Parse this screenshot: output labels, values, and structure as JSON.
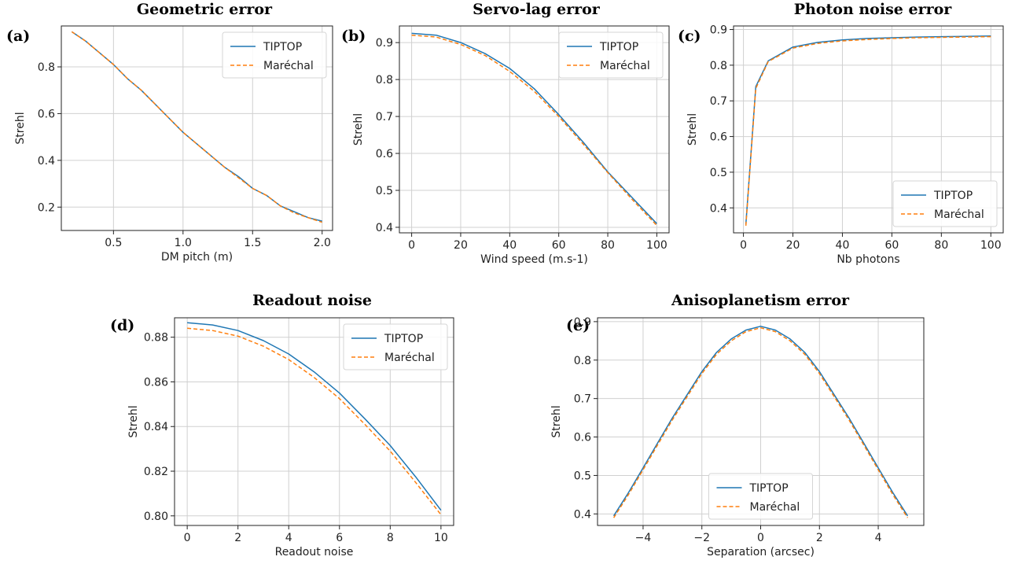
{
  "colors": {
    "tiptop": "#1f77b4",
    "marechal": "#ff7f0e"
  },
  "chart_data": [
    {
      "id": "a",
      "panel_label": "(a)",
      "type": "line",
      "title": "Geometric error",
      "xlabel": "DM pitch (m)",
      "ylabel": "Strehl",
      "xlim": [
        0.125,
        2.075
      ],
      "ylim": [
        0.1,
        0.975
      ],
      "xticks": [
        0.5,
        1.0,
        1.5,
        2.0
      ],
      "xtick_labels": [
        "0.5",
        "1.0",
        "1.5",
        "2.0"
      ],
      "yticks": [
        0.2,
        0.4,
        0.6,
        0.8
      ],
      "ytick_labels": [
        "0.2",
        "0.4",
        "0.6",
        "0.8"
      ],
      "grid": true,
      "legend_position": "top-right",
      "x": [
        0.2,
        0.3,
        0.4,
        0.5,
        0.6,
        0.7,
        0.8,
        0.9,
        1.0,
        1.1,
        1.2,
        1.3,
        1.4,
        1.5,
        1.6,
        1.7,
        1.8,
        1.9,
        2.0
      ],
      "series": [
        {
          "name": "TIPTOP",
          "style": "solid",
          "values": [
            0.95,
            0.91,
            0.86,
            0.81,
            0.75,
            0.7,
            0.64,
            0.58,
            0.52,
            0.47,
            0.42,
            0.37,
            0.33,
            0.28,
            0.25,
            0.205,
            0.18,
            0.155,
            0.14
          ]
        },
        {
          "name": "Maréchal",
          "style": "dashed",
          "values": [
            0.95,
            0.91,
            0.86,
            0.81,
            0.75,
            0.7,
            0.64,
            0.58,
            0.52,
            0.47,
            0.42,
            0.37,
            0.325,
            0.28,
            0.25,
            0.205,
            0.175,
            0.155,
            0.135
          ]
        }
      ]
    },
    {
      "id": "b",
      "panel_label": "(b)",
      "type": "line",
      "title": "Servo-lag error",
      "xlabel": "Wind speed (m.s-1)",
      "ylabel": "Strehl",
      "xlim": [
        -5,
        105
      ],
      "ylim": [
        0.385,
        0.945
      ],
      "xticks": [
        0,
        20,
        40,
        60,
        80,
        100
      ],
      "xtick_labels": [
        "0",
        "20",
        "40",
        "60",
        "80",
        "100"
      ],
      "yticks": [
        0.4,
        0.5,
        0.6,
        0.7,
        0.8,
        0.9
      ],
      "ytick_labels": [
        "0.4",
        "0.5",
        "0.6",
        "0.7",
        "0.8",
        "0.9"
      ],
      "grid": true,
      "legend_position": "top-right",
      "x": [
        0,
        10,
        20,
        30,
        40,
        50,
        60,
        70,
        80,
        90,
        100
      ],
      "series": [
        {
          "name": "TIPTOP",
          "style": "solid",
          "values": [
            0.925,
            0.92,
            0.9,
            0.87,
            0.83,
            0.775,
            0.705,
            0.63,
            0.55,
            0.48,
            0.41
          ]
        },
        {
          "name": "Maréchal",
          "style": "dashed",
          "values": [
            0.92,
            0.915,
            0.895,
            0.865,
            0.822,
            0.768,
            0.7,
            0.625,
            0.548,
            0.475,
            0.405
          ]
        }
      ]
    },
    {
      "id": "c",
      "panel_label": "(c)",
      "type": "line",
      "title": "Photon noise error",
      "xlabel": "Nb photons",
      "ylabel": "Strehl",
      "xlim": [
        -4,
        105
      ],
      "ylim": [
        0.33,
        0.91
      ],
      "xticks": [
        0,
        20,
        40,
        60,
        80,
        100
      ],
      "xtick_labels": [
        "0",
        "20",
        "40",
        "60",
        "80",
        "100"
      ],
      "yticks": [
        0.4,
        0.5,
        0.6,
        0.7,
        0.8,
        0.9
      ],
      "ytick_labels": [
        "0.4",
        "0.5",
        "0.6",
        "0.7",
        "0.8",
        "0.9"
      ],
      "grid": true,
      "legend_position": "bottom-right",
      "x": [
        1,
        5,
        10,
        20,
        30,
        40,
        50,
        60,
        70,
        80,
        90,
        100
      ],
      "series": [
        {
          "name": "TIPTOP",
          "style": "solid",
          "values": [
            0.355,
            0.74,
            0.812,
            0.851,
            0.864,
            0.871,
            0.875,
            0.877,
            0.879,
            0.88,
            0.881,
            0.882
          ]
        },
        {
          "name": "Maréchal",
          "style": "dashed",
          "values": [
            0.35,
            0.735,
            0.81,
            0.848,
            0.861,
            0.868,
            0.872,
            0.875,
            0.877,
            0.878,
            0.879,
            0.88
          ]
        }
      ]
    },
    {
      "id": "d",
      "panel_label": "(d)",
      "type": "line",
      "title": "Readout noise",
      "xlabel": "Readout noise",
      "ylabel": "Strehl",
      "xlim": [
        -0.5,
        10.5
      ],
      "ylim": [
        0.7957,
        0.8887
      ],
      "xticks": [
        0,
        2,
        4,
        6,
        8,
        10
      ],
      "xtick_labels": [
        "0",
        "2",
        "4",
        "6",
        "8",
        "10"
      ],
      "yticks": [
        0.8,
        0.82,
        0.84,
        0.86,
        0.88
      ],
      "ytick_labels": [
        "0.80",
        "0.82",
        "0.84",
        "0.86",
        "0.88"
      ],
      "grid": true,
      "legend_position": "top-right",
      "x": [
        0,
        1,
        2,
        3,
        4,
        5,
        6,
        7,
        8,
        9,
        10
      ],
      "series": [
        {
          "name": "TIPTOP",
          "style": "solid",
          "values": [
            0.8865,
            0.8855,
            0.883,
            0.8785,
            0.8725,
            0.8645,
            0.855,
            0.8435,
            0.8315,
            0.8175,
            0.8025
          ]
        },
        {
          "name": "Maréchal",
          "style": "dashed",
          "values": [
            0.884,
            0.883,
            0.8805,
            0.876,
            0.87,
            0.862,
            0.8525,
            0.841,
            0.829,
            0.815,
            0.8005
          ]
        }
      ]
    },
    {
      "id": "e",
      "panel_label": "(e)",
      "type": "line",
      "title": "Anisoplanetism error",
      "xlabel": "Separation (arcsec)",
      "ylabel": "Strehl",
      "xlim": [
        -5.55,
        5.55
      ],
      "ylim": [
        0.37,
        0.91
      ],
      "xticks": [
        -4,
        -2,
        0,
        2,
        4
      ],
      "xtick_labels": [
        "−4",
        "−2",
        "0",
        "2",
        "4"
      ],
      "yticks": [
        0.4,
        0.5,
        0.6,
        0.7,
        0.8,
        0.9
      ],
      "ytick_labels": [
        "0.4",
        "0.5",
        "0.6",
        "0.7",
        "0.8",
        "0.9"
      ],
      "grid": true,
      "legend_position": "bottom-center",
      "x": [
        -5,
        -4.5,
        -4,
        -3.5,
        -3,
        -2.5,
        -2,
        -1.5,
        -1,
        -0.5,
        0,
        0.5,
        1,
        1.5,
        2,
        2.5,
        3,
        3.5,
        4,
        4.5,
        5
      ],
      "series": [
        {
          "name": "TIPTOP",
          "style": "solid",
          "values": [
            0.395,
            0.455,
            0.52,
            0.585,
            0.65,
            0.71,
            0.77,
            0.82,
            0.855,
            0.878,
            0.888,
            0.878,
            0.855,
            0.82,
            0.77,
            0.71,
            0.65,
            0.585,
            0.52,
            0.455,
            0.395
          ]
        },
        {
          "name": "Maréchal",
          "style": "dashed",
          "values": [
            0.39,
            0.45,
            0.515,
            0.58,
            0.645,
            0.705,
            0.765,
            0.815,
            0.85,
            0.874,
            0.884,
            0.874,
            0.85,
            0.815,
            0.765,
            0.705,
            0.645,
            0.58,
            0.515,
            0.45,
            0.39
          ]
        }
      ]
    }
  ]
}
